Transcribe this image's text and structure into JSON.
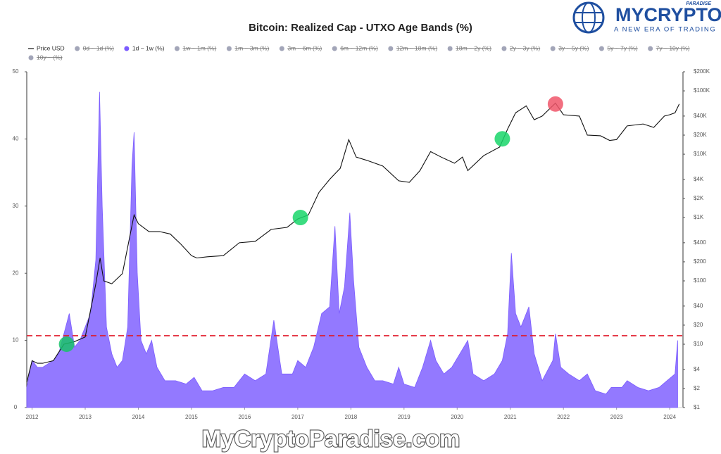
{
  "chart_data": {
    "type": "area-line",
    "title": "Bitcoin: Realized Cap - UTXO Age Bands (%)",
    "xlim": [
      2011.9,
      2024.25
    ],
    "xticks": [
      2012,
      2013,
      2014,
      2015,
      2016,
      2017,
      2018,
      2019,
      2020,
      2021,
      2022,
      2023,
      2024
    ],
    "ylim": [
      0,
      50
    ],
    "yticks": [
      0,
      10,
      20,
      30,
      40,
      50
    ],
    "y2lim": [
      1,
      200000
    ],
    "y2log": true,
    "y2ticks": [
      {
        "value": 1,
        "label": "$1"
      },
      {
        "value": 2,
        "label": "$2"
      },
      {
        "value": 4,
        "label": "$4"
      },
      {
        "value": 10,
        "label": "$10"
      },
      {
        "value": 20,
        "label": "$20"
      },
      {
        "value": 40,
        "label": "$40"
      },
      {
        "value": 100,
        "label": "$100"
      },
      {
        "value": 200,
        "label": "$200"
      },
      {
        "value": 400,
        "label": "$400"
      },
      {
        "value": 1000,
        "label": "$1K"
      },
      {
        "value": 2000,
        "label": "$2K"
      },
      {
        "value": 4000,
        "label": "$4K"
      },
      {
        "value": 10000,
        "label": "$10K"
      },
      {
        "value": 20000,
        "label": "$20K"
      },
      {
        "value": 40000,
        "label": "$40K"
      },
      {
        "value": 100000,
        "label": "$100K"
      },
      {
        "value": 200000,
        "label": "$200K"
      }
    ],
    "series": [
      {
        "name": "Price USD",
        "color": "#111111",
        "axis": "y2",
        "kind": "line",
        "x": [
          2011.9,
          2012.0,
          2012.1,
          2012.2,
          2012.4,
          2012.6,
          2012.8,
          2013.0,
          2013.2,
          2013.28,
          2013.35,
          2013.5,
          2013.7,
          2013.92,
          2014.0,
          2014.2,
          2014.4,
          2014.6,
          2014.8,
          2015.0,
          2015.1,
          2015.3,
          2015.6,
          2015.9,
          2016.2,
          2016.5,
          2016.8,
          2017.0,
          2017.2,
          2017.4,
          2017.6,
          2017.8,
          2017.96,
          2018.1,
          2018.3,
          2018.6,
          2018.9,
          2019.1,
          2019.3,
          2019.5,
          2019.7,
          2019.95,
          2020.1,
          2020.2,
          2020.5,
          2020.8,
          2020.95,
          2021.1,
          2021.3,
          2021.45,
          2021.6,
          2021.85,
          2022.0,
          2022.3,
          2022.45,
          2022.7,
          2022.87,
          2023.0,
          2023.2,
          2023.5,
          2023.7,
          2023.9,
          2024.0,
          2024.1,
          2024.18
        ],
        "values": [
          2.5,
          5.5,
          5,
          5,
          5.5,
          10,
          11,
          13,
          90,
          230,
          100,
          90,
          130,
          1100,
          800,
          600,
          600,
          550,
          380,
          250,
          230,
          240,
          250,
          400,
          420,
          650,
          700,
          950,
          1100,
          2500,
          4000,
          6000,
          17000,
          9000,
          8000,
          6500,
          3800,
          3600,
          5500,
          11000,
          9000,
          7200,
          9000,
          5500,
          9500,
          13000,
          25000,
          45000,
          58000,
          35000,
          40000,
          64000,
          42000,
          40000,
          20000,
          19500,
          16500,
          17000,
          28000,
          30000,
          26500,
          40000,
          42000,
          45000,
          62000
        ]
      },
      {
        "name": "0d ~ 1d (%)",
        "color": "#7a7f9a",
        "hidden": true
      },
      {
        "name": "1d ~ 1w (%)",
        "color": "#7b5cff",
        "kind": "area",
        "x": [
          2011.9,
          2012.0,
          2012.1,
          2012.2,
          2012.3,
          2012.4,
          2012.5,
          2012.6,
          2012.7,
          2012.8,
          2012.9,
          2013.0,
          2013.1,
          2013.2,
          2013.27,
          2013.32,
          2013.4,
          2013.5,
          2013.6,
          2013.7,
          2013.8,
          2013.88,
          2013.92,
          2013.98,
          2014.05,
          2014.15,
          2014.25,
          2014.35,
          2014.5,
          2014.7,
          2014.9,
          2015.05,
          2015.2,
          2015.4,
          2015.6,
          2015.8,
          2016.0,
          2016.2,
          2016.4,
          2016.55,
          2016.7,
          2016.9,
          2017.0,
          2017.15,
          2017.3,
          2017.45,
          2017.6,
          2017.7,
          2017.78,
          2017.88,
          2017.98,
          2018.05,
          2018.15,
          2018.3,
          2018.45,
          2018.6,
          2018.8,
          2018.9,
          2019.0,
          2019.2,
          2019.35,
          2019.5,
          2019.6,
          2019.75,
          2019.9,
          2020.2,
          2020.3,
          2020.5,
          2020.7,
          2020.85,
          2020.95,
          2021.02,
          2021.1,
          2021.2,
          2021.35,
          2021.45,
          2021.6,
          2021.8,
          2021.85,
          2021.95,
          2022.1,
          2022.3,
          2022.45,
          2022.6,
          2022.8,
          2022.9,
          2023.1,
          2023.2,
          2023.4,
          2023.6,
          2023.8,
          2023.95,
          2024.1,
          2024.15
        ],
        "values": [
          3,
          7,
          6,
          6,
          6.5,
          7,
          8,
          11,
          14,
          9,
          10,
          12,
          14,
          22,
          47,
          30,
          12,
          8,
          6,
          7,
          12,
          36,
          41,
          20,
          10,
          8,
          10,
          6,
          4,
          4,
          3.5,
          4.5,
          2.5,
          2.5,
          3,
          3,
          5,
          4,
          5,
          13,
          5,
          5,
          7,
          6,
          9,
          14,
          15,
          27,
          14,
          18,
          29,
          19,
          9,
          6,
          4,
          4,
          3.5,
          6,
          3.5,
          3,
          6,
          10,
          7,
          5,
          6,
          10,
          5,
          4,
          5,
          7,
          11,
          23,
          14,
          12,
          15,
          8,
          4,
          7,
          11,
          6,
          5,
          4,
          5,
          2.5,
          2,
          3,
          3,
          4,
          3,
          2.5,
          3,
          4,
          5,
          10
        ]
      },
      {
        "name": "1w ~ 1m (%)",
        "color": "#7a7f9a",
        "hidden": true
      },
      {
        "name": "1m ~ 3m (%)",
        "color": "#7a7f9a",
        "hidden": true
      },
      {
        "name": "3m ~ 6m (%)",
        "color": "#7a7f9a",
        "hidden": true
      },
      {
        "name": "6m ~ 12m (%)",
        "color": "#7a7f9a",
        "hidden": true
      },
      {
        "name": "12m ~ 18m (%)",
        "color": "#7a7f9a",
        "hidden": true
      },
      {
        "name": "18m ~ 2y (%)",
        "color": "#7a7f9a",
        "hidden": true
      },
      {
        "name": "2y ~ 3y (%)",
        "color": "#7a7f9a",
        "hidden": true
      },
      {
        "name": "3y ~ 5y (%)",
        "color": "#7a7f9a",
        "hidden": true
      },
      {
        "name": "5y ~ 7y (%)",
        "color": "#7a7f9a",
        "hidden": true
      },
      {
        "name": "7y ~ 10y (%)",
        "color": "#7a7f9a",
        "hidden": true
      },
      {
        "name": "10y ~ (%)",
        "color": "#7a7f9a",
        "hidden": true
      }
    ],
    "hline": {
      "value": 10.7,
      "color": "#e0192a"
    },
    "markers": [
      {
        "x": 2012.65,
        "value": 10,
        "color": "#19c36a"
      },
      {
        "x": 2017.05,
        "value": 1000,
        "color": "#19d66a"
      },
      {
        "x": 2020.85,
        "value": 17500,
        "color": "#19d66a"
      },
      {
        "x": 2021.85,
        "value": 62000,
        "color": "#f0566a"
      }
    ]
  },
  "branding": {
    "logo": "MYCRYPTO",
    "logo_small": "PARADISE",
    "tagline": "A NEW ERA OF TRADING",
    "watermark": "MyCryptoParadise.com"
  }
}
